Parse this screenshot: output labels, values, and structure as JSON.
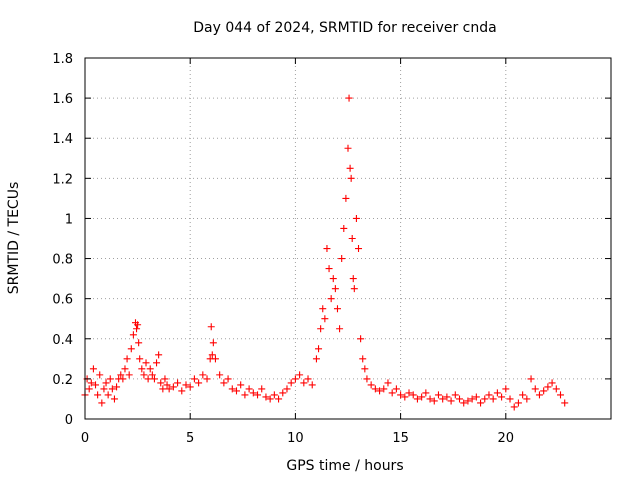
{
  "chart_data": {
    "type": "scatter",
    "title": "Day 044 of 2024, SRMTID for receiver cnda",
    "xlabel": "GPS time / hours",
    "ylabel": "SRMTID / TECUs",
    "xlim": [
      0,
      25
    ],
    "ylim": [
      0,
      1.8
    ],
    "xticks": [
      0,
      5,
      10,
      15,
      20
    ],
    "xtick_labels": [
      "0",
      "5",
      "10",
      "15",
      "20"
    ],
    "yticks": [
      0,
      0.2,
      0.4,
      0.6,
      0.8,
      1.0,
      1.2,
      1.4,
      1.6,
      1.8
    ],
    "ytick_labels": [
      "0",
      "0.2",
      "0.4",
      "0.6",
      "0.8",
      "1",
      "1.2",
      "1.4",
      "1.6",
      "1.8"
    ],
    "grid": true,
    "marker": "plus",
    "marker_color": "#ff0000",
    "series": [
      {
        "name": "SRMTID",
        "x": [
          0.0,
          0.1,
          0.2,
          0.3,
          0.4,
          0.5,
          0.6,
          0.7,
          0.8,
          0.9,
          1.0,
          1.1,
          1.2,
          1.3,
          1.4,
          1.5,
          1.6,
          1.7,
          1.8,
          1.9,
          2.0,
          2.1,
          2.2,
          2.3,
          2.4,
          2.45,
          2.5,
          2.55,
          2.6,
          2.7,
          2.8,
          2.9,
          3.0,
          3.1,
          3.2,
          3.3,
          3.4,
          3.5,
          3.6,
          3.7,
          3.8,
          3.9,
          4.0,
          4.2,
          4.4,
          4.6,
          4.8,
          5.0,
          5.2,
          5.4,
          5.6,
          5.8,
          5.95,
          6.0,
          6.05,
          6.1,
          6.2,
          6.4,
          6.6,
          6.8,
          7.0,
          7.2,
          7.4,
          7.6,
          7.8,
          8.0,
          8.2,
          8.4,
          8.6,
          8.8,
          9.0,
          9.2,
          9.4,
          9.6,
          9.8,
          10.0,
          10.2,
          10.4,
          10.6,
          10.8,
          11.0,
          11.1,
          11.2,
          11.3,
          11.4,
          11.5,
          11.6,
          11.7,
          11.8,
          11.9,
          12.0,
          12.1,
          12.2,
          12.3,
          12.4,
          12.5,
          12.55,
          12.6,
          12.65,
          12.7,
          12.75,
          12.8,
          12.9,
          13.0,
          13.1,
          13.2,
          13.3,
          13.4,
          13.6,
          13.8,
          14.0,
          14.2,
          14.4,
          14.6,
          14.8,
          15.0,
          15.2,
          15.4,
          15.6,
          15.8,
          16.0,
          16.2,
          16.4,
          16.6,
          16.8,
          17.0,
          17.2,
          17.4,
          17.6,
          17.8,
          18.0,
          18.2,
          18.4,
          18.6,
          18.8,
          19.0,
          19.2,
          19.4,
          19.6,
          19.8,
          20.0,
          20.2,
          20.4,
          20.6,
          20.8,
          21.0,
          21.2,
          21.4,
          21.6,
          21.8,
          22.0,
          22.2,
          22.4,
          22.6,
          22.8
        ],
        "y": [
          0.12,
          0.2,
          0.15,
          0.18,
          0.25,
          0.17,
          0.12,
          0.22,
          0.08,
          0.15,
          0.18,
          0.12,
          0.2,
          0.15,
          0.1,
          0.16,
          0.2,
          0.22,
          0.2,
          0.25,
          0.3,
          0.22,
          0.35,
          0.42,
          0.48,
          0.45,
          0.47,
          0.38,
          0.3,
          0.25,
          0.22,
          0.28,
          0.2,
          0.25,
          0.22,
          0.2,
          0.28,
          0.32,
          0.18,
          0.15,
          0.2,
          0.17,
          0.15,
          0.16,
          0.18,
          0.14,
          0.17,
          0.16,
          0.2,
          0.18,
          0.22,
          0.2,
          0.3,
          0.46,
          0.32,
          0.38,
          0.3,
          0.22,
          0.18,
          0.2,
          0.15,
          0.14,
          0.17,
          0.12,
          0.15,
          0.13,
          0.12,
          0.15,
          0.11,
          0.1,
          0.12,
          0.1,
          0.13,
          0.15,
          0.18,
          0.2,
          0.22,
          0.18,
          0.2,
          0.17,
          0.3,
          0.35,
          0.45,
          0.55,
          0.5,
          0.85,
          0.75,
          0.6,
          0.7,
          0.65,
          0.55,
          0.45,
          0.8,
          0.95,
          1.1,
          1.35,
          1.6,
          1.25,
          1.2,
          0.9,
          0.7,
          0.65,
          1.0,
          0.85,
          0.4,
          0.3,
          0.25,
          0.2,
          0.17,
          0.15,
          0.14,
          0.15,
          0.18,
          0.13,
          0.15,
          0.12,
          0.11,
          0.13,
          0.12,
          0.1,
          0.11,
          0.13,
          0.1,
          0.09,
          0.12,
          0.1,
          0.11,
          0.09,
          0.12,
          0.1,
          0.08,
          0.09,
          0.1,
          0.11,
          0.08,
          0.1,
          0.12,
          0.1,
          0.13,
          0.11,
          0.15,
          0.1,
          0.06,
          0.08,
          0.12,
          0.1,
          0.2,
          0.15,
          0.12,
          0.14,
          0.16,
          0.18,
          0.15,
          0.12,
          0.08
        ]
      }
    ]
  }
}
